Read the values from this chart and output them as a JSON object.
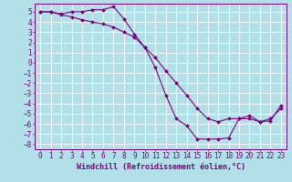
{
  "background_color": "#b2e0e8",
  "grid_color": "#ffffff",
  "line_color": "#800080",
  "marker_color": "#800080",
  "xlabel": "Windchill (Refroidissement éolien,°C)",
  "xlim": [
    -0.5,
    23.5
  ],
  "ylim": [
    -8.5,
    5.8
  ],
  "xticks": [
    0,
    1,
    2,
    3,
    4,
    5,
    6,
    7,
    8,
    9,
    10,
    11,
    12,
    13,
    14,
    15,
    16,
    17,
    18,
    19,
    20,
    21,
    22,
    23
  ],
  "yticks": [
    5,
    4,
    3,
    2,
    1,
    0,
    -1,
    -2,
    -3,
    -4,
    -5,
    -6,
    -7,
    -8
  ],
  "line1_x": [
    0,
    1,
    2,
    3,
    4,
    5,
    6,
    7,
    8,
    9,
    10,
    11,
    12,
    13,
    14,
    15,
    16,
    17,
    18,
    19,
    20,
    21,
    22,
    23
  ],
  "line1_y": [
    5.0,
    5.0,
    4.8,
    5.0,
    5.0,
    5.2,
    5.2,
    5.5,
    4.3,
    2.8,
    1.5,
    -0.5,
    -3.2,
    -5.5,
    -6.2,
    -7.5,
    -7.5,
    -7.5,
    -7.4,
    -5.5,
    -5.2,
    -5.8,
    -5.7,
    -4.2
  ],
  "line2_x": [
    0,
    1,
    2,
    3,
    4,
    5,
    6,
    7,
    8,
    9,
    10,
    11,
    12,
    13,
    14,
    15,
    16,
    17,
    18,
    19,
    20,
    21,
    22,
    23
  ],
  "line2_y": [
    5.0,
    5.0,
    4.7,
    4.5,
    4.2,
    4.0,
    3.8,
    3.5,
    3.0,
    2.5,
    1.5,
    0.5,
    -0.8,
    -2.0,
    -3.2,
    -4.5,
    -5.5,
    -5.8,
    -5.5,
    -5.5,
    -5.5,
    -5.8,
    -5.5,
    -4.5
  ],
  "font_size": 5.5,
  "tick_font_size": 5.5,
  "xlabel_font_size": 6.0
}
